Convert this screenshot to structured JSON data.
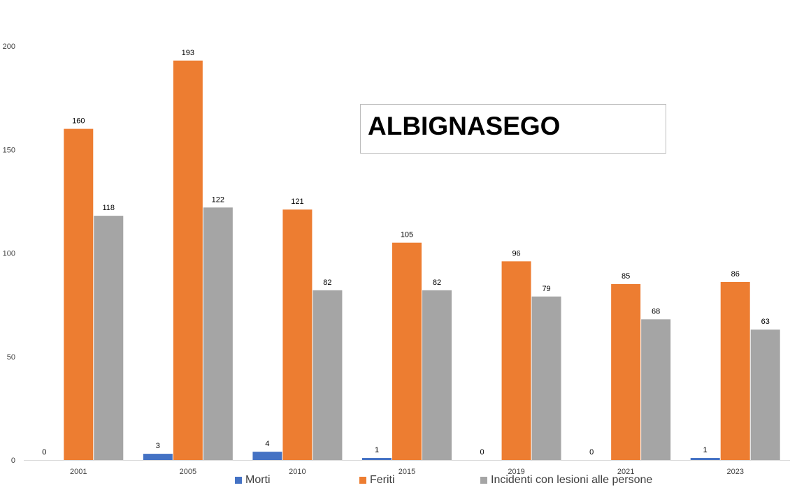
{
  "chart_data": {
    "type": "bar",
    "title": "ALBIGNASEGO",
    "categories": [
      "2001",
      "2005",
      "2010",
      "2015",
      "2019",
      "2021",
      "2023"
    ],
    "series": [
      {
        "name": "Morti",
        "color": "#4472c4",
        "values": [
          0,
          3,
          4,
          1,
          0,
          0,
          1
        ]
      },
      {
        "name": "Feriti",
        "color": "#ed7d31",
        "values": [
          160,
          193,
          121,
          105,
          96,
          85,
          86
        ]
      },
      {
        "name": "Incidenti con lesioni alle persone",
        "color": "#a5a5a5",
        "values": [
          118,
          122,
          82,
          82,
          79,
          68,
          63
        ]
      }
    ],
    "ylim": [
      0,
      200
    ],
    "yticks": [
      "0",
      "50",
      "100",
      "150",
      "200"
    ],
    "grid": false,
    "legend_position": "bottom",
    "data_labels": true
  }
}
